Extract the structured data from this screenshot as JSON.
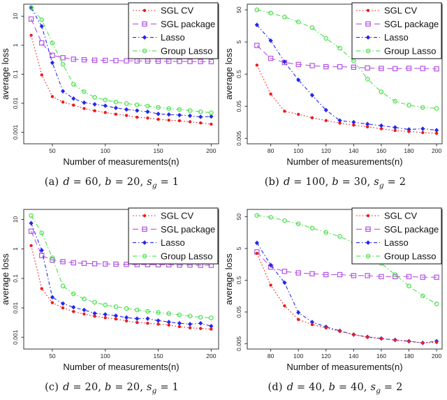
{
  "figure": {
    "background": "#ffffff",
    "axis_color": "#222222",
    "xlabel": "Number of measurements(n)",
    "ylabel": "average loss",
    "legend_labels": [
      "SGL CV",
      "SGL package",
      "Lasso",
      "Group Lasso"
    ],
    "series_colors": {
      "sgl_cv": "#EF1A1A",
      "sgl_package": "#B353E3",
      "lasso": "#2626EE",
      "group_lasso": "#4EE04E"
    }
  },
  "chart_data": [
    {
      "id": "a",
      "type": "line",
      "log_y": true,
      "legend_position": "top-right",
      "caption": {
        "tag": "(a)",
        "segments": [
          [
            "d",
            1
          ],
          [
            " = 60, ",
            0
          ],
          [
            "b",
            1
          ],
          [
            " = 20, ",
            0
          ],
          [
            "s",
            1
          ],
          [
            "g",
            2
          ],
          [
            " = 1",
            0
          ]
        ]
      },
      "xlabel": "Number of measurements(n)",
      "ylabel": "average loss",
      "xlim": [
        23,
        207
      ],
      "ylim": [
        0.0004,
        26
      ],
      "xticks": [
        50,
        100,
        150,
        200
      ],
      "yticks": [
        "0.001",
        "0.01",
        "0.1",
        "1",
        "10"
      ],
      "x": [
        30,
        40,
        50,
        60,
        70,
        80,
        90,
        100,
        110,
        120,
        130,
        140,
        150,
        160,
        170,
        180,
        190,
        200
      ],
      "series": [
        {
          "name": "SGL CV",
          "color": "#EF1A1A",
          "marker": "filled-circle",
          "dash": "dotted",
          "values": [
            2.2,
            0.095,
            0.017,
            0.011,
            0.0086,
            0.0066,
            0.0055,
            0.0048,
            0.0042,
            0.0038,
            0.0033,
            0.0031,
            0.0028,
            0.0026,
            0.0025,
            0.0023,
            0.0021,
            0.0019
          ]
        },
        {
          "name": "SGL package",
          "color": "#B353E3",
          "marker": "open-square",
          "dash": "longdash",
          "values": [
            8,
            1.2,
            0.45,
            0.37,
            0.33,
            0.315,
            0.305,
            0.3,
            0.295,
            0.29,
            0.288,
            0.285,
            0.282,
            0.28,
            0.278,
            0.276,
            0.274,
            0.272
          ]
        },
        {
          "name": "Lasso",
          "color": "#2626EE",
          "marker": "filled-diamond",
          "dash": "dashdot",
          "values": [
            19,
            4.5,
            0.25,
            0.026,
            0.0145,
            0.0105,
            0.0092,
            0.0082,
            0.0069,
            0.0061,
            0.0056,
            0.0051,
            0.0043,
            0.0041,
            0.0039,
            0.0037,
            0.0034,
            0.0035
          ]
        },
        {
          "name": "Group Lasso",
          "color": "#4EE04E",
          "marker": "open-circle",
          "dash": "dashdot-long",
          "values": [
            20,
            7.5,
            1.2,
            0.22,
            0.045,
            0.025,
            0.016,
            0.013,
            0.011,
            0.0098,
            0.0088,
            0.008,
            0.0072,
            0.0066,
            0.0061,
            0.0056,
            0.0051,
            0.0047
          ]
        }
      ]
    },
    {
      "id": "b",
      "type": "line",
      "log_y": true,
      "legend_position": "top-right",
      "caption": {
        "tag": "(b)",
        "segments": [
          [
            "d",
            1
          ],
          [
            " = 100, ",
            0
          ],
          [
            "b",
            1
          ],
          [
            " = 30, ",
            0
          ],
          [
            "s",
            1
          ],
          [
            "g",
            2
          ],
          [
            " = 2",
            0
          ]
        ]
      },
      "xlabel": "Number of measurements(n)",
      "ylabel": "average loss",
      "xlim": [
        63,
        204
      ],
      "ylim": [
        0.0034,
        75
      ],
      "xticks": [
        80,
        100,
        120,
        140,
        160,
        180,
        200
      ],
      "yticks": [
        "0.005",
        "0.05",
        "0.5",
        "5",
        "50"
      ],
      "x": [
        70,
        80,
        90,
        100,
        110,
        120,
        130,
        140,
        150,
        160,
        170,
        180,
        190,
        200
      ],
      "series": [
        {
          "name": "SGL CV",
          "color": "#EF1A1A",
          "marker": "filled-circle",
          "dash": "dotted",
          "values": [
            0.95,
            0.12,
            0.035,
            0.028,
            0.022,
            0.018,
            0.015,
            0.013,
            0.0115,
            0.01,
            0.0088,
            0.0082,
            0.0076,
            0.0072
          ]
        },
        {
          "name": "SGL package",
          "color": "#B353E3",
          "marker": "open-square",
          "dash": "longdash",
          "values": [
            3.9,
            1.55,
            1.15,
            1.0,
            0.92,
            0.85,
            0.85,
            0.82,
            0.78,
            0.75,
            0.74,
            0.76,
            0.75,
            0.73
          ]
        },
        {
          "name": "Lasso",
          "color": "#2626EE",
          "marker": "filled-diamond",
          "dash": "dashdot",
          "values": [
            17,
            5.5,
            1.2,
            0.33,
            0.11,
            0.038,
            0.018,
            0.016,
            0.014,
            0.0125,
            0.011,
            0.0095,
            0.01,
            0.009
          ]
        },
        {
          "name": "Group Lasso",
          "color": "#4EE04E",
          "marker": "open-circle",
          "dash": "dashdot-long",
          "values": [
            50,
            40,
            30,
            21,
            14,
            6.5,
            3.2,
            1.3,
            0.35,
            0.14,
            0.072,
            0.054,
            0.046,
            0.043
          ]
        }
      ]
    },
    {
      "id": "c",
      "type": "line",
      "log_y": true,
      "legend_position": "top-right",
      "caption": {
        "tag": "(c)",
        "segments": [
          [
            "d",
            1
          ],
          [
            " = 20, ",
            0
          ],
          [
            "b",
            1
          ],
          [
            " = 20, ",
            0
          ],
          [
            "s",
            1
          ],
          [
            "g",
            2
          ],
          [
            " = 1",
            0
          ]
        ]
      },
      "xlabel": "Number of measurements(n)",
      "ylabel": "average loss",
      "xlim": [
        23,
        207
      ],
      "ylim": [
        0.0004,
        22
      ],
      "xticks": [
        50,
        100,
        150,
        200
      ],
      "yticks": [
        "0.001",
        "0.01",
        "0.1",
        "1",
        "10"
      ],
      "x": [
        30,
        40,
        50,
        60,
        70,
        80,
        90,
        100,
        110,
        120,
        130,
        140,
        150,
        160,
        170,
        180,
        190,
        200
      ],
      "series": [
        {
          "name": "SGL CV",
          "color": "#EF1A1A",
          "marker": "filled-circle",
          "dash": "dotted",
          "values": [
            1.3,
            0.045,
            0.015,
            0.01,
            0.0075,
            0.0062,
            0.0052,
            0.0046,
            0.0042,
            0.0036,
            0.0032,
            0.003,
            0.0028,
            0.0026,
            0.0023,
            0.0021,
            0.002,
            0.0019
          ]
        },
        {
          "name": "SGL package",
          "color": "#B353E3",
          "marker": "open-square",
          "dash": "longdash",
          "values": [
            4.0,
            0.6,
            0.42,
            0.37,
            0.34,
            0.325,
            0.315,
            0.31,
            0.305,
            0.3,
            0.295,
            0.295,
            0.29,
            0.29,
            0.285,
            0.285,
            0.28,
            0.28
          ]
        },
        {
          "name": "Lasso",
          "color": "#2626EE",
          "marker": "filled-diamond",
          "dash": "dashdot",
          "values": [
            7.5,
            0.9,
            0.023,
            0.014,
            0.0105,
            0.0085,
            0.0065,
            0.006,
            0.0054,
            0.0047,
            0.0043,
            0.0043,
            0.0037,
            0.0033,
            0.003,
            0.0028,
            0.003,
            0.0024
          ]
        },
        {
          "name": "Group Lasso",
          "color": "#4EE04E",
          "marker": "open-circle",
          "dash": "dashdot-long",
          "values": [
            13.5,
            3.5,
            0.5,
            0.055,
            0.03,
            0.02,
            0.0155,
            0.0125,
            0.011,
            0.0095,
            0.0085,
            0.0076,
            0.007,
            0.0064,
            0.0058,
            0.0053,
            0.0048,
            0.0046
          ]
        }
      ]
    },
    {
      "id": "d",
      "type": "line",
      "log_y": true,
      "legend_position": "top-right",
      "caption": {
        "tag": "(d)",
        "segments": [
          [
            "d",
            1
          ],
          [
            " = 40, ",
            0
          ],
          [
            "b",
            1
          ],
          [
            " = 40, ",
            0
          ],
          [
            "s",
            1
          ],
          [
            "g",
            2
          ],
          [
            " = 2",
            0
          ]
        ]
      },
      "xlabel": "Number of measurements(n)",
      "ylabel": "average loss",
      "xlim": [
        63,
        204
      ],
      "ylim": [
        0.0034,
        85
      ],
      "xticks": [
        80,
        100,
        120,
        140,
        160,
        180,
        200
      ],
      "yticks": [
        "0.005",
        "0.05",
        "0.5",
        "5",
        "50"
      ],
      "x": [
        70,
        80,
        90,
        100,
        110,
        120,
        130,
        140,
        150,
        160,
        170,
        180,
        190,
        200
      ],
      "series": [
        {
          "name": "SGL CV",
          "color": "#EF1A1A",
          "marker": "filled-circle",
          "dash": "dotted",
          "values": [
            3.5,
            0.35,
            0.078,
            0.029,
            0.02,
            0.0158,
            0.0123,
            0.0097,
            0.008,
            0.0072,
            0.0065,
            0.0059,
            0.0053,
            0.0055
          ]
        },
        {
          "name": "SGL package",
          "color": "#B353E3",
          "marker": "open-square",
          "dash": "longdash",
          "values": [
            3.9,
            1.3,
            0.95,
            0.85,
            0.8,
            0.75,
            0.75,
            0.7,
            0.7,
            0.65,
            0.65,
            0.65,
            0.62,
            0.62
          ]
        },
        {
          "name": "Lasso",
          "color": "#2626EE",
          "marker": "filled-diamond",
          "dash": "dashdot",
          "values": [
            7.5,
            1.5,
            0.42,
            0.048,
            0.024,
            0.017,
            0.0127,
            0.0097,
            0.0082,
            0.0073,
            0.0066,
            0.006,
            0.0053,
            0.006
          ]
        },
        {
          "name": "Group Lasso",
          "color": "#4EE04E",
          "marker": "open-circle",
          "dash": "dashdot-long",
          "values": [
            55,
            48,
            38,
            30,
            22,
            16,
            12,
            7.5,
            3.8,
            1.7,
            0.75,
            0.33,
            0.16,
            0.09
          ]
        }
      ]
    }
  ]
}
